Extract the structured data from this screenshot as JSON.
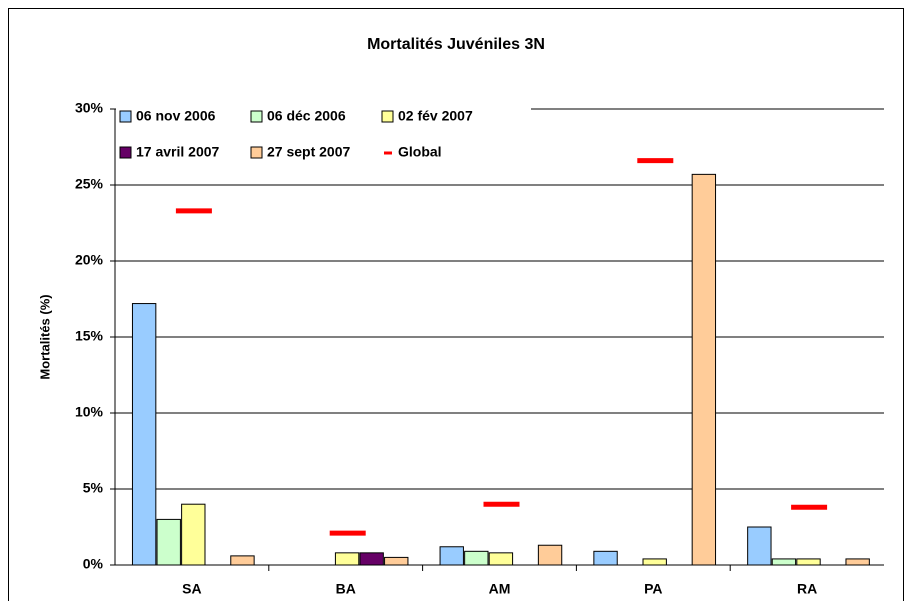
{
  "chart_data": {
    "type": "bar",
    "title": "Mortalités Juvéniles 3N",
    "ylabel": "Mortalités (%)",
    "categories": [
      "SA",
      "BA",
      "AM",
      "PA",
      "RA"
    ],
    "series": [
      {
        "name": "06 nov 2006",
        "color": "#99ccff",
        "values": [
          17.2,
          0,
          1.2,
          0.9,
          2.5
        ]
      },
      {
        "name": "06 déc 2006",
        "color": "#ccffcc",
        "values": [
          3.0,
          0,
          0.9,
          0,
          0.4
        ]
      },
      {
        "name": "02 fév 2007",
        "color": "#ffff99",
        "values": [
          4.0,
          0.8,
          0.8,
          0.4,
          0.4
        ]
      },
      {
        "name": "17 avril 2007",
        "color": "#660066",
        "values": [
          0,
          0.8,
          0,
          0,
          0
        ]
      },
      {
        "name": "27 sept 2007",
        "color": "#ffcc99",
        "values": [
          0.6,
          0.5,
          1.3,
          25.7,
          0.4
        ]
      },
      {
        "name": "Global",
        "color": "#ff0000",
        "style": "dash",
        "values": [
          23.3,
          2.1,
          4.0,
          26.6,
          3.8
        ]
      }
    ],
    "ylim": [
      0,
      30
    ],
    "yticks": [
      {
        "value": 0,
        "label": "0%"
      },
      {
        "value": 5,
        "label": "5%"
      },
      {
        "value": 10,
        "label": "10%"
      },
      {
        "value": 15,
        "label": "15%"
      },
      {
        "value": 20,
        "label": "20%"
      },
      {
        "value": 25,
        "label": "25%"
      },
      {
        "value": 30,
        "label": "30%"
      }
    ],
    "grid": true
  }
}
